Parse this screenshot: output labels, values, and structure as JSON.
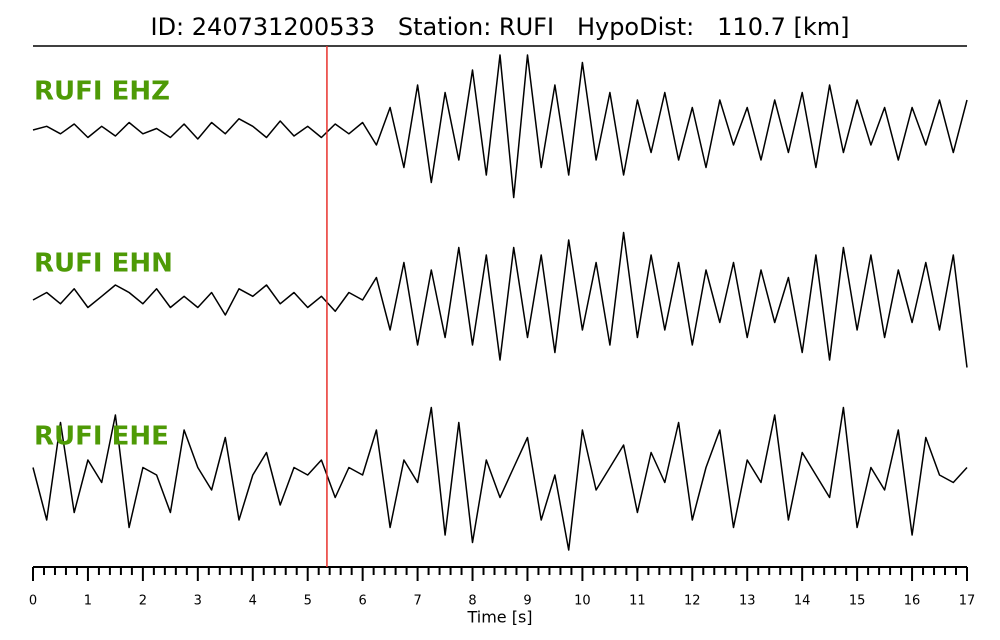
{
  "chart_data": {
    "type": "seismogram",
    "title": "ID: 240731200533   Station: RUFI   HypoDist:   110.7 [km]",
    "x_label": "Time [s]",
    "xlim": [
      0,
      17
    ],
    "xticks": [
      0,
      1,
      2,
      3,
      4,
      5,
      6,
      7,
      8,
      9,
      10,
      11,
      12,
      13,
      14,
      15,
      16,
      17
    ],
    "minor_per_major": 5,
    "label_color": "#4e9a06",
    "pick": {
      "x": 5.35,
      "color": "#e8312b"
    },
    "x": [
      0,
      0.25,
      0.5,
      0.75,
      1,
      1.25,
      1.5,
      1.75,
      2,
      2.25,
      2.5,
      2.75,
      3,
      3.25,
      3.5,
      3.75,
      4,
      4.25,
      4.5,
      4.75,
      5,
      5.25,
      5.5,
      5.75,
      6,
      6.25,
      6.5,
      6.75,
      7,
      7.25,
      7.5,
      7.75,
      8,
      8.25,
      8.5,
      8.75,
      9,
      9.25,
      9.5,
      9.75,
      10,
      10.25,
      10.5,
      10.75,
      11,
      11.25,
      11.5,
      11.75,
      12,
      12.25,
      12.5,
      12.75,
      13,
      13.25,
      13.5,
      13.75,
      14,
      14.25,
      14.5,
      14.75,
      15,
      15.25,
      15.5,
      15.75,
      16,
      16.25,
      16.5,
      16.75,
      17
    ],
    "series": [
      {
        "name": "RUFI EHZ",
        "color": "#000000",
        "values": [
          0.0,
          0.05,
          -0.05,
          0.08,
          -0.1,
          0.05,
          -0.08,
          0.1,
          -0.05,
          0.02,
          -0.1,
          0.08,
          -0.12,
          0.1,
          -0.05,
          0.15,
          0.05,
          -0.1,
          0.12,
          -0.08,
          0.05,
          -0.1,
          0.08,
          -0.05,
          0.1,
          -0.2,
          0.3,
          -0.5,
          0.6,
          -0.7,
          0.5,
          -0.4,
          0.8,
          -0.6,
          1.0,
          -0.9,
          1.0,
          -0.5,
          0.6,
          -0.6,
          0.9,
          -0.4,
          0.5,
          -0.6,
          0.4,
          -0.3,
          0.5,
          -0.4,
          0.3,
          -0.5,
          0.4,
          -0.2,
          0.3,
          -0.4,
          0.4,
          -0.3,
          0.5,
          -0.5,
          0.6,
          -0.3,
          0.4,
          -0.2,
          0.3,
          -0.4,
          0.3,
          -0.2,
          0.4,
          -0.3,
          0.4
        ]
      },
      {
        "name": "RUFI EHN",
        "color": "#000000",
        "values": [
          0.0,
          0.1,
          -0.05,
          0.15,
          -0.1,
          0.05,
          0.2,
          0.1,
          -0.05,
          0.15,
          -0.1,
          0.05,
          -0.1,
          0.1,
          -0.2,
          0.15,
          0.05,
          0.2,
          -0.05,
          0.1,
          -0.1,
          0.05,
          -0.15,
          0.1,
          0.0,
          0.3,
          -0.4,
          0.5,
          -0.6,
          0.4,
          -0.5,
          0.7,
          -0.6,
          0.6,
          -0.8,
          0.7,
          -0.5,
          0.6,
          -0.7,
          0.8,
          -0.4,
          0.5,
          -0.6,
          0.9,
          -0.5,
          0.6,
          -0.4,
          0.5,
          -0.6,
          0.4,
          -0.3,
          0.5,
          -0.5,
          0.4,
          -0.3,
          0.3,
          -0.7,
          0.6,
          -0.8,
          0.7,
          -0.4,
          0.6,
          -0.5,
          0.4,
          -0.3,
          0.5,
          -0.4,
          0.6,
          -0.9
        ]
      },
      {
        "name": "RUFI EHE",
        "color": "#000000",
        "values": [
          0.1,
          -0.6,
          0.7,
          -0.5,
          0.2,
          -0.1,
          0.8,
          -0.7,
          0.1,
          0.0,
          -0.5,
          0.6,
          0.1,
          -0.2,
          0.5,
          -0.6,
          0.0,
          0.3,
          -0.4,
          0.1,
          0.0,
          0.2,
          -0.3,
          0.1,
          0.0,
          0.6,
          -0.7,
          0.2,
          -0.1,
          0.9,
          -0.8,
          0.7,
          -0.9,
          0.2,
          -0.3,
          0.1,
          0.5,
          -0.6,
          0.0,
          -1.0,
          0.6,
          -0.2,
          0.1,
          0.4,
          -0.5,
          0.3,
          -0.1,
          0.7,
          -0.6,
          0.1,
          0.6,
          -0.7,
          0.2,
          -0.1,
          0.8,
          -0.6,
          0.3,
          0.0,
          -0.3,
          0.9,
          -0.7,
          0.1,
          -0.2,
          0.6,
          -0.8,
          0.5,
          0.0,
          -0.1,
          0.1
        ]
      }
    ]
  }
}
